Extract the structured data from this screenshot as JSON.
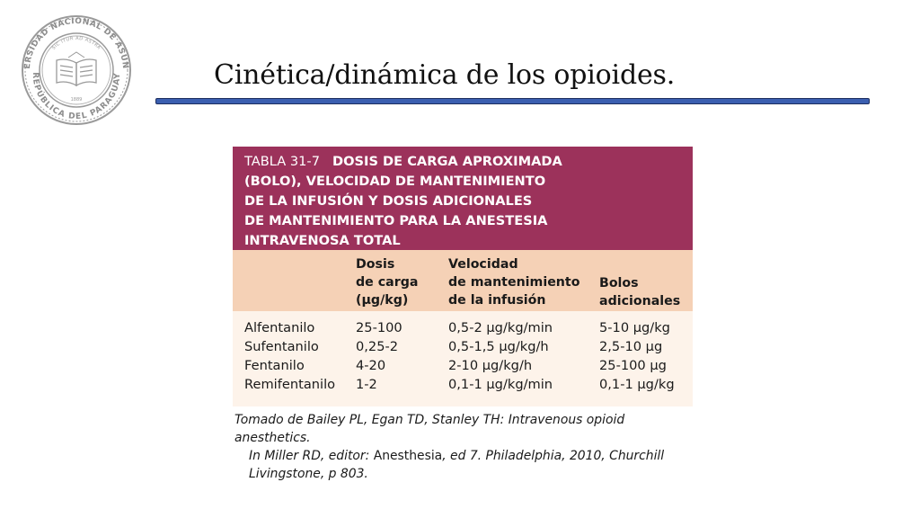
{
  "seal": {
    "top_text": "UNIVERSIDAD NACIONAL DE ASUNCIÓN",
    "bottom_text": "REPÚBLICA DEL PARAGUAY",
    "motto": "SIC ITUR AD ASTRA",
    "year": "1889",
    "color": "#9a9a9a"
  },
  "slide": {
    "title": "Cinética/dinámica de los opioides.",
    "rule_color": "#3b5fb0"
  },
  "table": {
    "number": "TABLA 31-7",
    "title_lines": [
      "DOSIS DE CARGA APROXIMADA",
      "(BOLO), VELOCIDAD DE MANTENIMIENTO",
      "DE LA INFUSIÓN Y DOSIS ADICIONALES",
      "DE MANTENIMIENTO PARA LA ANESTESIA",
      "INTRAVENOSA TOTAL"
    ],
    "columns": {
      "loading": [
        "Dosis",
        "de carga",
        "(μg/kg)"
      ],
      "infusion": [
        "Velocidad",
        "de mantenimiento",
        "de la infusión"
      ],
      "bolus": [
        "Bolos",
        "adicionales"
      ]
    },
    "rows": [
      {
        "drug": "Alfentanilo",
        "loading": "25-100",
        "infusion": "0,5-2 μg/kg/min",
        "bolus": "5-10 μg/kg"
      },
      {
        "drug": "Sufentanilo",
        "loading": "0,25-2",
        "infusion": "0,5-1,5 μg/kg/h",
        "bolus": "2,5-10 μg"
      },
      {
        "drug": "Fentanilo",
        "loading": "4-20",
        "infusion": "2-10 μg/kg/h",
        "bolus": "25-100 μg"
      },
      {
        "drug": "Remifentanilo",
        "loading": "1-2",
        "infusion": "0,1-1 μg/kg/min",
        "bolus": "0,1-1 μg/kg"
      }
    ],
    "colors": {
      "header": "#9c325b",
      "col_heads": "#f5d1b6",
      "body": "#fdf3ea"
    }
  },
  "source": {
    "line1": "Tomado de Bailey PL, Egan TD, Stanley TH: Intravenous opioid anesthetics.",
    "line2_a": "In Miller RD, editor: ",
    "line2_b": "Anesthesia",
    "line2_c": ", ed 7. Philadelphia, 2010, Churchill",
    "line3": "Livingstone, p 803."
  }
}
